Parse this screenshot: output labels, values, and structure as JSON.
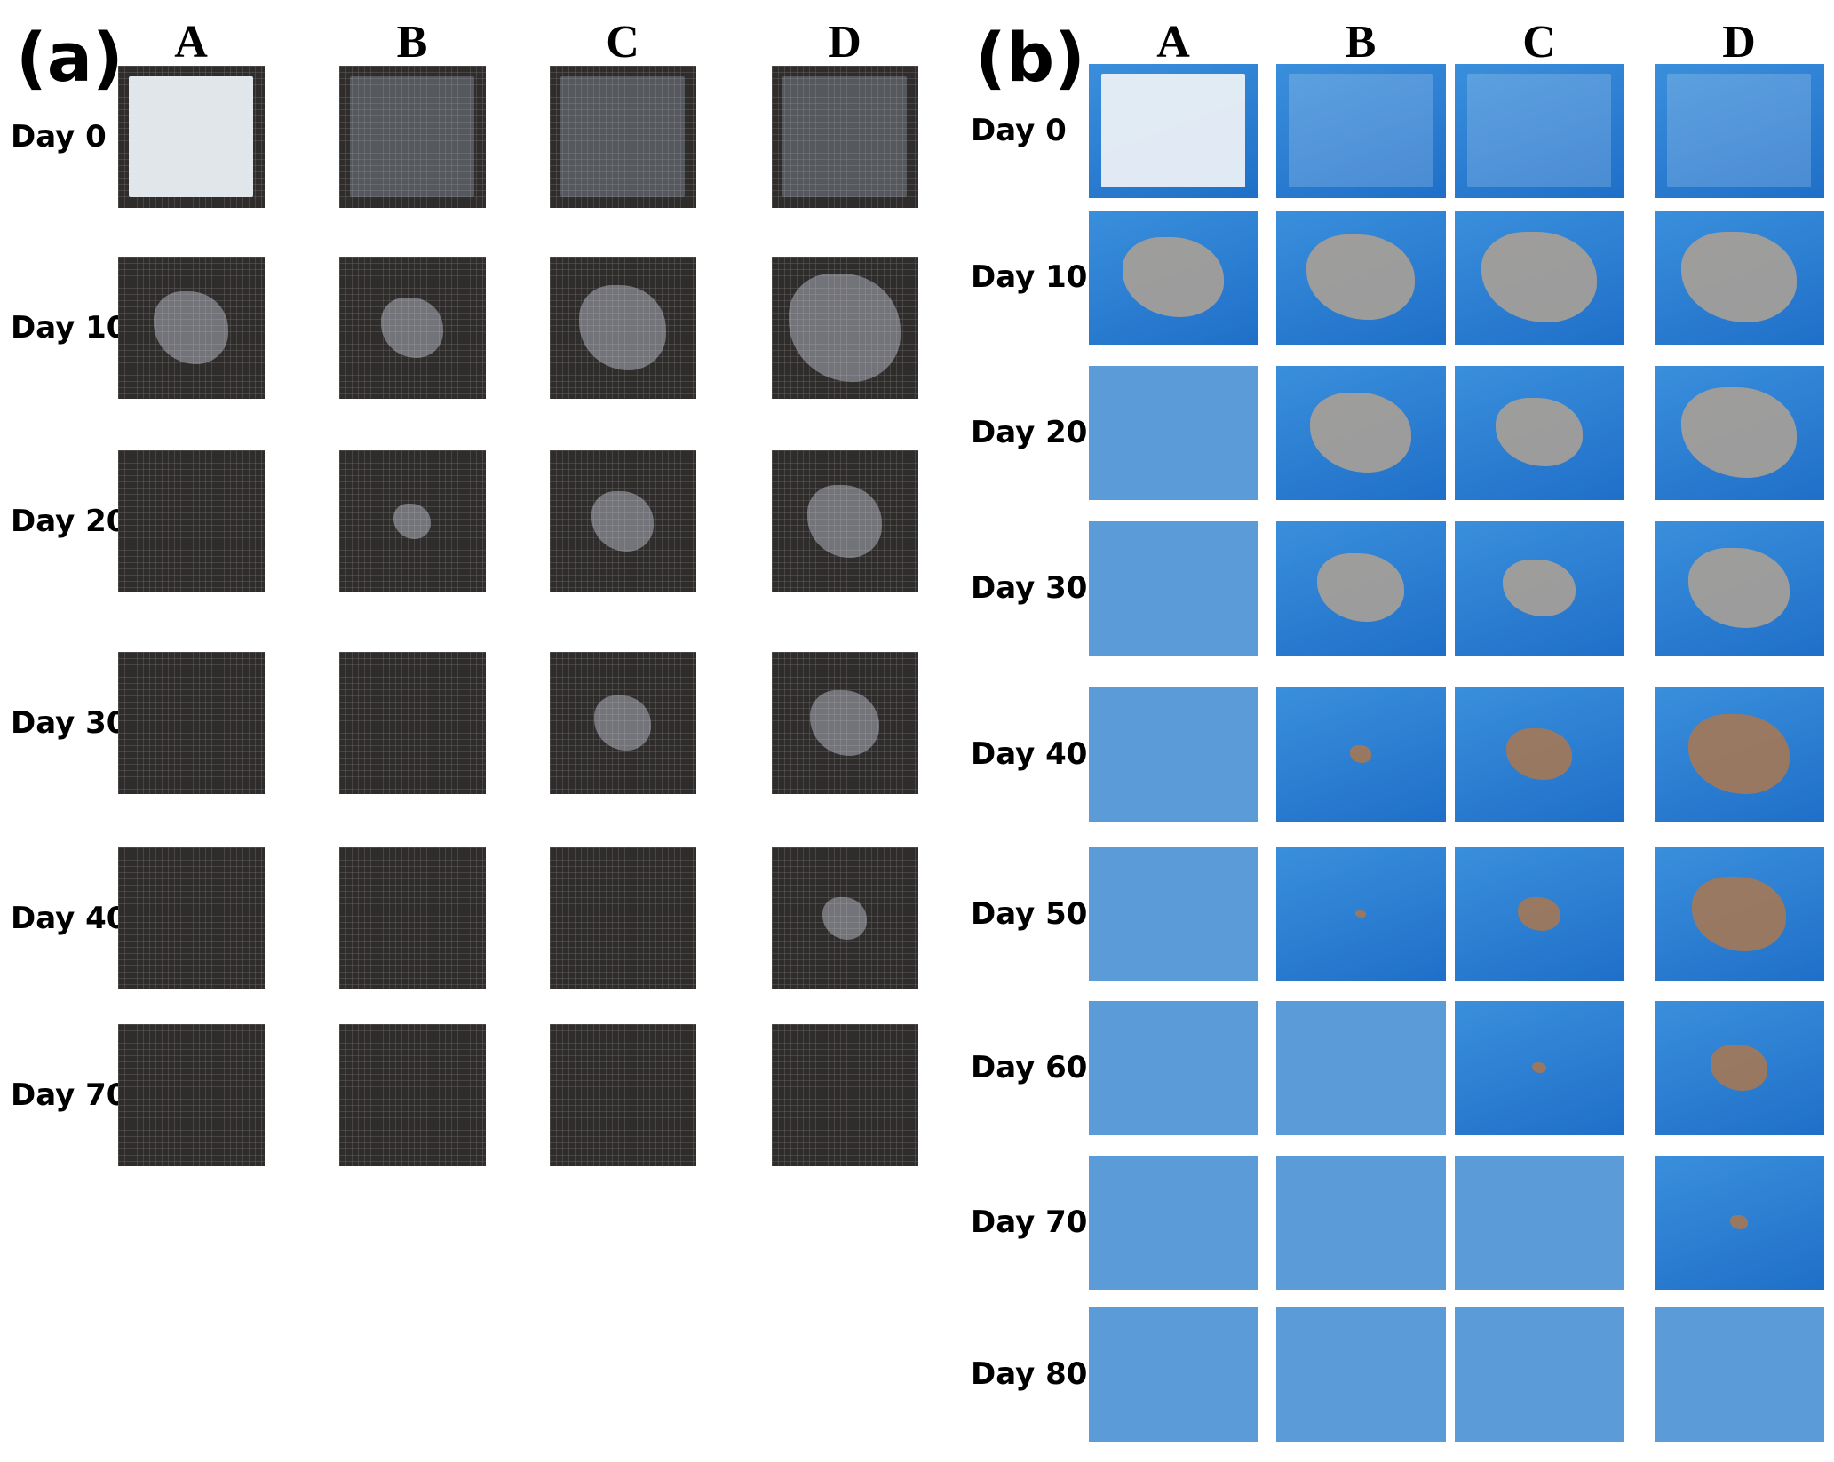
{
  "panels": [
    {
      "label": "(a)",
      "columns": [
        "A",
        "B",
        "C",
        "D"
      ],
      "rows": [
        "Day 0",
        "Day 10",
        "Day 20",
        "Day 30",
        "Day 40",
        "Day 70"
      ]
    },
    {
      "label": "(b)",
      "columns": [
        "A",
        "B",
        "C",
        "D"
      ],
      "rows": [
        "Day 0",
        "Day 10",
        "Day 20",
        "Day 30",
        "Day 40",
        "Day 50",
        "Day 60",
        "Day 70",
        "Day 80"
      ]
    }
  ]
}
